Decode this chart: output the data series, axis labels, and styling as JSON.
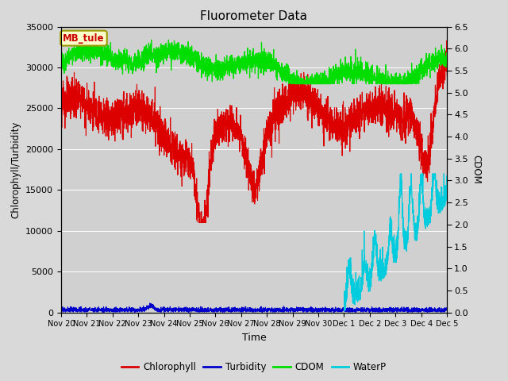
{
  "title": "Fluorometer Data",
  "xlabel": "Time",
  "ylabel_left": "Chlorophyll/Turbidity",
  "ylabel_right": "CDOM",
  "annotation": "MB_tule",
  "ylim_left": [
    0,
    35000
  ],
  "ylim_right": [
    0.0,
    6.5
  ],
  "yticks_left": [
    0,
    5000,
    10000,
    15000,
    20000,
    25000,
    30000,
    35000
  ],
  "yticks_right": [
    0.0,
    0.5,
    1.0,
    1.5,
    2.0,
    2.5,
    3.0,
    3.5,
    4.0,
    4.5,
    5.0,
    5.5,
    6.0,
    6.5
  ],
  "bg_color": "#d9d9d9",
  "plot_bg_color": "#d0d0d0",
  "colors": {
    "Chlorophyll": "#dd0000",
    "Turbidity": "#0000cc",
    "CDOM": "#00dd00",
    "WaterP": "#00ccdd"
  },
  "date_labels": [
    "Nov 20",
    "Nov 21",
    "Nov 22",
    "Nov 23",
    "Nov 24",
    "Nov 25",
    "Nov 26",
    "Nov 27",
    "Nov 28",
    "Nov 29",
    "Nov 30",
    "Dec 1",
    "Dec 2",
    "Dec 3",
    "Dec 4",
    "Dec 5"
  ],
  "figsize": [
    6.4,
    4.8
  ],
  "dpi": 100
}
